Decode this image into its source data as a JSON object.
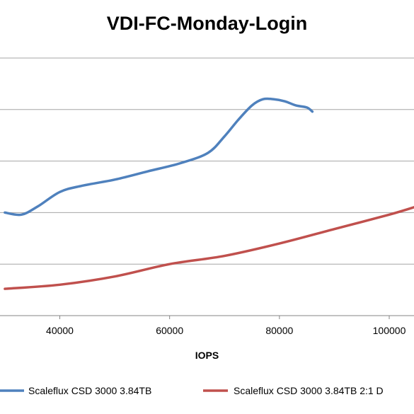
{
  "chart_data": {
    "type": "line",
    "title": "VDI-FC-Monday-Login",
    "xlabel": "IOPS",
    "ylabel": "",
    "x_ticks": [
      40000,
      60000,
      80000,
      100000
    ],
    "x_tick_labels": [
      "40000",
      "60000",
      "80000",
      "100000"
    ],
    "grid": true,
    "legend_position": "bottom",
    "series": [
      {
        "name": "Scaleflux CSD 3000 3.84TB",
        "color": "#4f81bd",
        "x": [
          30000,
          33000,
          36000,
          40000,
          44000,
          50000,
          56000,
          62000,
          67000,
          70000,
          72500,
          75000,
          77000,
          79000,
          81000,
          83000,
          85000,
          86000
        ],
        "y": [
          0.5,
          0.49,
          0.53,
          0.6,
          0.63,
          0.66,
          0.7,
          0.74,
          0.79,
          0.87,
          0.95,
          1.02,
          1.05,
          1.05,
          1.04,
          1.02,
          1.01,
          0.99
        ]
      },
      {
        "name": "Scaleflux CSD 3000 3.84TB 2:1 D",
        "color": "#c0504d",
        "x": [
          30000,
          40000,
          50000,
          60000,
          70000,
          80000,
          90000,
          100000,
          105000
        ],
        "y": [
          0.13,
          0.15,
          0.19,
          0.25,
          0.29,
          0.35,
          0.42,
          0.49,
          0.53
        ]
      }
    ]
  }
}
